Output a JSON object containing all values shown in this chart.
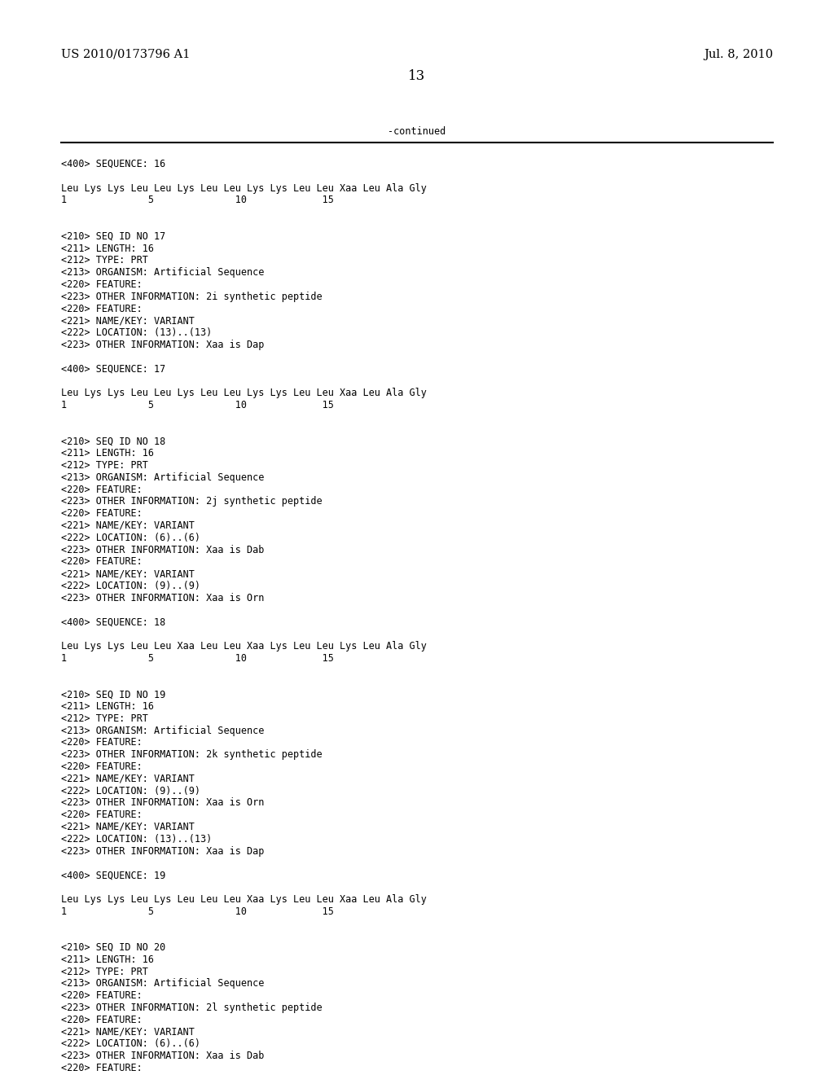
{
  "bg_color": "#ffffff",
  "header_left": "US 2010/0173796 A1",
  "header_right": "Jul. 8, 2010",
  "page_number": "13",
  "continued_text": "-continued",
  "content_lines": [
    "<400> SEQUENCE: 16",
    "",
    "Leu Lys Lys Leu Leu Lys Leu Leu Lys Lys Leu Leu Xaa Leu Ala Gly",
    "1              5              10             15",
    "",
    "",
    "<210> SEQ ID NO 17",
    "<211> LENGTH: 16",
    "<212> TYPE: PRT",
    "<213> ORGANISM: Artificial Sequence",
    "<220> FEATURE:",
    "<223> OTHER INFORMATION: 2i synthetic peptide",
    "<220> FEATURE:",
    "<221> NAME/KEY: VARIANT",
    "<222> LOCATION: (13)..(13)",
    "<223> OTHER INFORMATION: Xaa is Dap",
    "",
    "<400> SEQUENCE: 17",
    "",
    "Leu Lys Lys Leu Leu Lys Leu Leu Lys Lys Leu Leu Xaa Leu Ala Gly",
    "1              5              10             15",
    "",
    "",
    "<210> SEQ ID NO 18",
    "<211> LENGTH: 16",
    "<212> TYPE: PRT",
    "<213> ORGANISM: Artificial Sequence",
    "<220> FEATURE:",
    "<223> OTHER INFORMATION: 2j synthetic peptide",
    "<220> FEATURE:",
    "<221> NAME/KEY: VARIANT",
    "<222> LOCATION: (6)..(6)",
    "<223> OTHER INFORMATION: Xaa is Dab",
    "<220> FEATURE:",
    "<221> NAME/KEY: VARIANT",
    "<222> LOCATION: (9)..(9)",
    "<223> OTHER INFORMATION: Xaa is Orn",
    "",
    "<400> SEQUENCE: 18",
    "",
    "Leu Lys Lys Leu Leu Xaa Leu Leu Xaa Lys Leu Leu Lys Leu Ala Gly",
    "1              5              10             15",
    "",
    "",
    "<210> SEQ ID NO 19",
    "<211> LENGTH: 16",
    "<212> TYPE: PRT",
    "<213> ORGANISM: Artificial Sequence",
    "<220> FEATURE:",
    "<223> OTHER INFORMATION: 2k synthetic peptide",
    "<220> FEATURE:",
    "<221> NAME/KEY: VARIANT",
    "<222> LOCATION: (9)..(9)",
    "<223> OTHER INFORMATION: Xaa is Orn",
    "<220> FEATURE:",
    "<221> NAME/KEY: VARIANT",
    "<222> LOCATION: (13)..(13)",
    "<223> OTHER INFORMATION: Xaa is Dap",
    "",
    "<400> SEQUENCE: 19",
    "",
    "Leu Lys Lys Leu Lys Leu Leu Leu Xaa Lys Leu Leu Xaa Leu Ala Gly",
    "1              5              10             15",
    "",
    "",
    "<210> SEQ ID NO 20",
    "<211> LENGTH: 16",
    "<212> TYPE: PRT",
    "<213> ORGANISM: Artificial Sequence",
    "<220> FEATURE:",
    "<223> OTHER INFORMATION: 2l synthetic peptide",
    "<220> FEATURE:",
    "<221> NAME/KEY: VARIANT",
    "<222> LOCATION: (6)..(6)",
    "<223> OTHER INFORMATION: Xaa is Dab",
    "<220> FEATURE:"
  ],
  "font_color": "#000000",
  "mono_font": "DejaVu Sans Mono",
  "serif_font": "DejaVu Serif",
  "content_fontsize": 8.5,
  "header_fontsize": 10.5,
  "page_num_fontsize": 12
}
